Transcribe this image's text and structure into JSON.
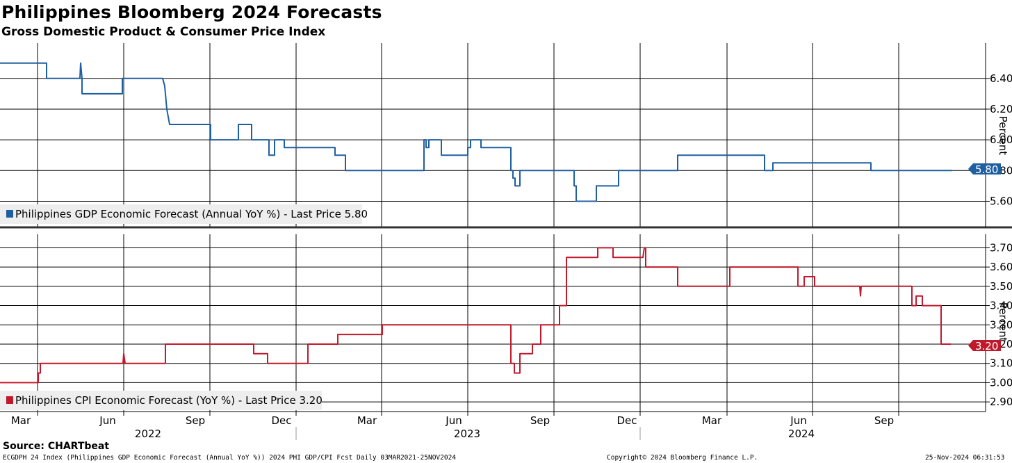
{
  "title": "Philippines Bloomberg 2024 Forecasts",
  "subtitle": "Gross Domestic Product & Consumer Price Index",
  "source": "Source: CHARTbeat",
  "footer": {
    "left": "ECGDPH 24 Index (Philippines GDP Economic Forecast (Annual YoY %)) 2024 PHI GDP/CPI Fcst  Daily 03MAR2021-25NOV2024",
    "center": "Copyright© 2024 Bloomberg Finance L.P.",
    "right": "25-Nov-2024 06:31:53"
  },
  "colors": {
    "gdp": "#1f5fa0",
    "cpi": "#c0192c"
  },
  "chart_data": [
    {
      "type": "line",
      "title": "Philippines GDP Economic Forecast (Annual YoY %)",
      "legend": "Philippines GDP Economic Forecast (Annual YoY %) - Last Price 5.80",
      "ylabel": "Percent",
      "ylim": [
        5.43,
        6.63
      ],
      "yticks": [
        "5.60",
        "5.80",
        "6.00",
        "6.20",
        "6.40"
      ],
      "last_price": "5.80",
      "step": true,
      "x": [
        0,
        67,
        67,
        115,
        116,
        118,
        118,
        176,
        176,
        234,
        237,
        240,
        244,
        244,
        303,
        303,
        343,
        343,
        362,
        362,
        387,
        387,
        395,
        395,
        398,
        398,
        409,
        409,
        411,
        411,
        482,
        482,
        497,
        497,
        610,
        610,
        613,
        613,
        617,
        617,
        635,
        635,
        673,
        673,
        677,
        677,
        692,
        692,
        735,
        735,
        738,
        738,
        741,
        741,
        748,
        748,
        826,
        826,
        829,
        829,
        858,
        858,
        890,
        890,
        975,
        975,
        1100,
        1100,
        1112,
        1112,
        1253,
        1253,
        1260,
        1260,
        1370
      ],
      "values": [
        6.5,
        6.5,
        6.4,
        6.4,
        6.5,
        6.4,
        6.3,
        6.3,
        6.4,
        6.4,
        6.35,
        6.2,
        6.1,
        6.1,
        6.1,
        6.0,
        6.0,
        6.1,
        6.1,
        6.0,
        6.0,
        5.9,
        5.9,
        6.0,
        6.0,
        6.0,
        6.0,
        5.95,
        5.95,
        5.95,
        5.95,
        5.9,
        5.9,
        5.8,
        5.8,
        6.0,
        6.0,
        5.95,
        5.95,
        6.0,
        6.0,
        5.9,
        5.9,
        5.95,
        5.95,
        6.0,
        6.0,
        5.95,
        5.95,
        5.8,
        5.8,
        5.75,
        5.75,
        5.7,
        5.7,
        5.8,
        5.8,
        5.7,
        5.7,
        5.6,
        5.6,
        5.7,
        5.7,
        5.8,
        5.8,
        5.9,
        5.9,
        5.8,
        5.8,
        5.85,
        5.85,
        5.8,
        5.8,
        5.8,
        5.8
      ]
    },
    {
      "type": "line",
      "title": "Philippines CPI Economic Forecast (YoY %)",
      "legend": "Philippines CPI Economic Forecast (YoY %) - Last Price 3.20",
      "ylabel": "Percent",
      "ylim": [
        2.85,
        3.77
      ],
      "yticks": [
        "2.90",
        "3.00",
        "3.10",
        "3.20",
        "3.30",
        "3.40",
        "3.50",
        "3.60",
        "3.70"
      ],
      "last_price": "3.20",
      "step": true,
      "x": [
        0,
        55,
        55,
        58,
        58,
        177,
        178,
        180,
        180,
        238,
        238,
        365,
        365,
        385,
        385,
        443,
        443,
        486,
        486,
        550,
        550,
        735,
        735,
        740,
        740,
        748,
        748,
        766,
        766,
        778,
        778,
        805,
        805,
        815,
        815,
        860,
        860,
        882,
        882,
        925,
        927,
        929,
        929,
        975,
        975,
        985,
        985,
        1050,
        1050,
        1148,
        1148,
        1157,
        1157,
        1172,
        1172,
        1190,
        1190,
        1237,
        1238,
        1239,
        1239,
        1312,
        1312,
        1318,
        1318,
        1327,
        1327,
        1354,
        1354,
        1368
      ],
      "values": [
        3.0,
        3.0,
        3.05,
        3.05,
        3.1,
        3.1,
        3.15,
        3.1,
        3.1,
        3.1,
        3.2,
        3.2,
        3.15,
        3.15,
        3.1,
        3.1,
        3.2,
        3.2,
        3.25,
        3.25,
        3.3,
        3.3,
        3.1,
        3.1,
        3.05,
        3.05,
        3.15,
        3.15,
        3.2,
        3.2,
        3.3,
        3.3,
        3.4,
        3.4,
        3.65,
        3.65,
        3.7,
        3.7,
        3.65,
        3.65,
        3.7,
        3.7,
        3.6,
        3.6,
        3.5,
        3.5,
        3.5,
        3.5,
        3.6,
        3.6,
        3.5,
        3.5,
        3.55,
        3.55,
        3.5,
        3.5,
        3.5,
        3.5,
        3.45,
        3.5,
        3.5,
        3.5,
        3.4,
        3.4,
        3.45,
        3.45,
        3.4,
        3.4,
        3.2,
        3.2
      ]
    }
  ],
  "x_axis": {
    "months": [
      {
        "label": "Mar",
        "x": 30
      },
      {
        "label": "Jun",
        "x": 155
      },
      {
        "label": "Sep",
        "x": 281
      },
      {
        "label": "Dec",
        "x": 405
      },
      {
        "label": "Mar",
        "x": 528
      },
      {
        "label": "Jun",
        "x": 653
      },
      {
        "label": "Sep",
        "x": 777
      },
      {
        "label": "Dec",
        "x": 902
      },
      {
        "label": "Mar",
        "x": 1024
      },
      {
        "label": "Jun",
        "x": 1149
      },
      {
        "label": "Sep",
        "x": 1272
      }
    ],
    "years": [
      {
        "label": "2022",
        "x": 213
      },
      {
        "label": "2023",
        "x": 672
      },
      {
        "label": "2024",
        "x": 1153
      }
    ],
    "gridlines": [
      54,
      178,
      302,
      426,
      549,
      673,
      797,
      921,
      1046,
      1169,
      1293
    ]
  }
}
